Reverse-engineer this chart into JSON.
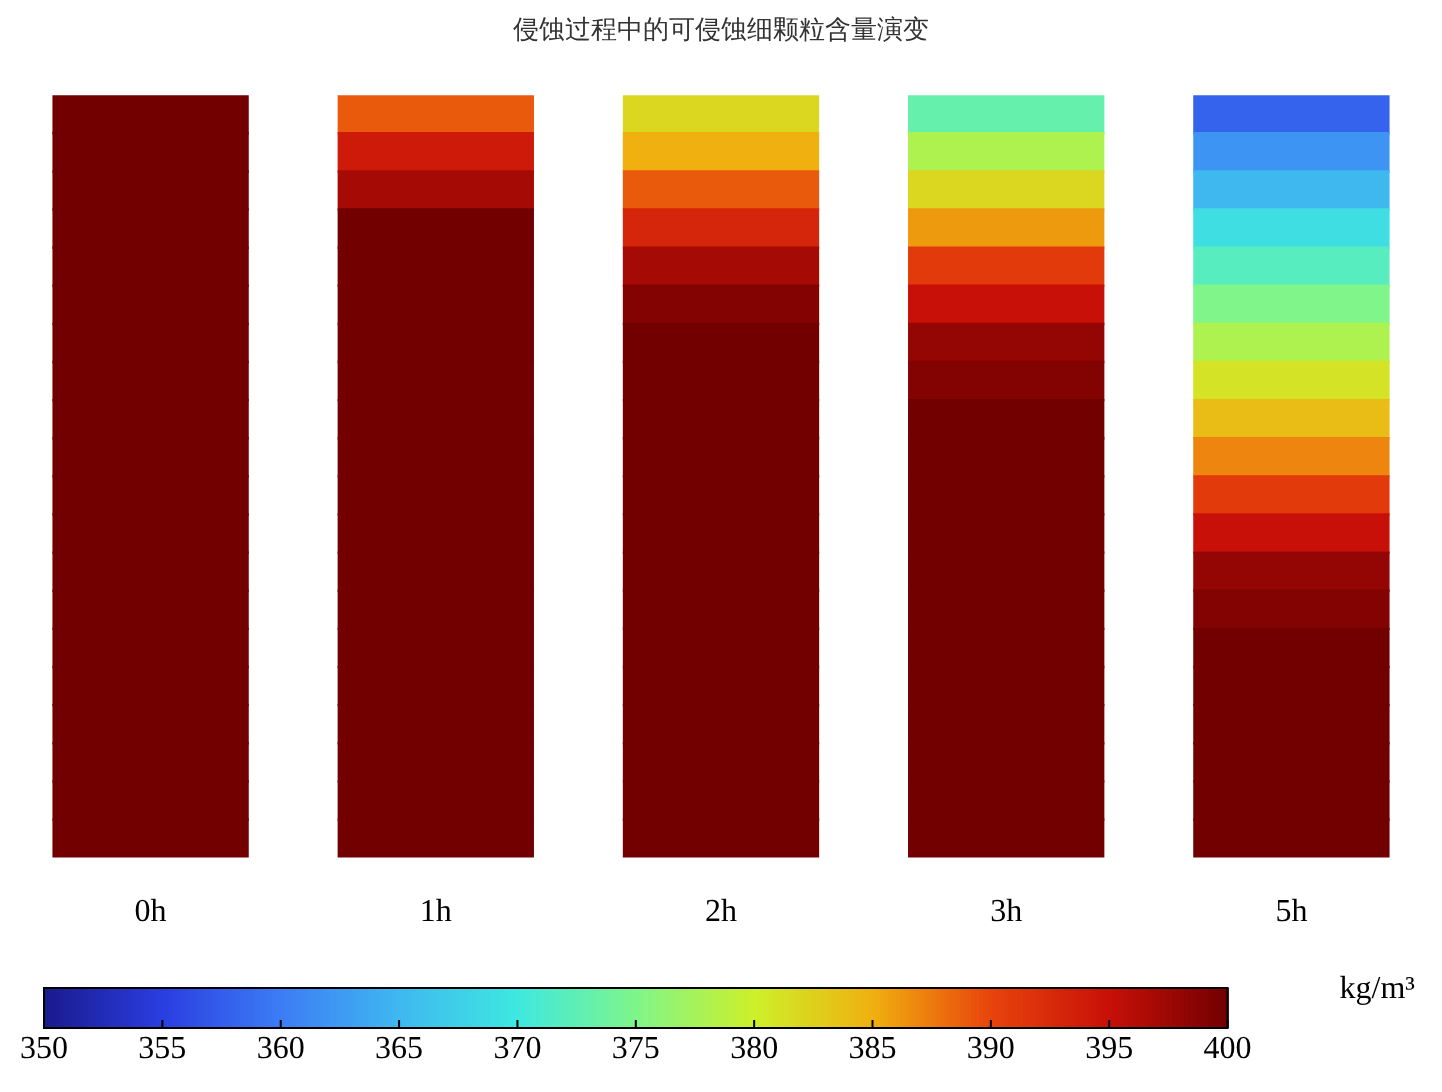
{
  "chart_data": {
    "type": "heatmap",
    "title": "侵蚀过程中的可侵蚀细颗粒含量演变",
    "clabel": "kg/m³",
    "categories": [
      "0h",
      "1h",
      "2h",
      "3h",
      "5h"
    ],
    "y_categories": [
      null,
      null,
      null,
      null,
      null,
      null,
      null,
      null,
      null,
      null,
      null,
      null,
      null,
      null,
      null,
      null,
      null,
      null,
      null,
      null
    ],
    "cells": [
      [
        400,
        389,
        382,
        373,
        358
      ],
      [
        400,
        394,
        385,
        378,
        362
      ],
      [
        400,
        397,
        389,
        382,
        365
      ],
      [
        400,
        400,
        393,
        386,
        369
      ],
      [
        400,
        400,
        397,
        391,
        372
      ],
      [
        400,
        400,
        399,
        395,
        375
      ],
      [
        400,
        400,
        400,
        398,
        378
      ],
      [
        400,
        400,
        400,
        399,
        381
      ],
      [
        400,
        400,
        400,
        400,
        384
      ],
      [
        400,
        400,
        400,
        400,
        387
      ],
      [
        400,
        400,
        400,
        400,
        391
      ],
      [
        400,
        400,
        400,
        400,
        395
      ],
      [
        400,
        400,
        400,
        400,
        398
      ],
      [
        400,
        400,
        400,
        400,
        399
      ],
      [
        400,
        400,
        400,
        400,
        400
      ],
      [
        400,
        400,
        400,
        400,
        400
      ],
      [
        400,
        400,
        400,
        400,
        400
      ],
      [
        400,
        400,
        400,
        400,
        400
      ],
      [
        400,
        400,
        400,
        400,
        400
      ],
      [
        400,
        400,
        400,
        400,
        400
      ]
    ],
    "clim": [
      350,
      400
    ],
    "cticks": [
      350,
      355,
      360,
      365,
      370,
      375,
      380,
      385,
      390,
      395,
      400
    ]
  }
}
